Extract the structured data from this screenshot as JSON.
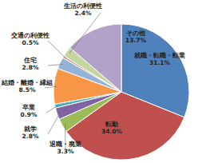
{
  "chart_data": {
    "type": "pie",
    "categories": [
      "就職・転職・転業",
      "転勤",
      "退職・廃業",
      "就学",
      "卒業",
      "結婚・離婚・縁組",
      "住宅",
      "交通の利便性",
      "生活の利便性",
      "その他"
    ],
    "values": [
      31.1,
      34.0,
      3.3,
      2.8,
      0.9,
      8.5,
      2.8,
      0.5,
      2.4,
      13.7
    ],
    "value_labels": [
      "31.1%",
      "34.0%",
      "3.3%",
      "2.8%",
      "0.9%",
      "8.5%",
      "2.8%",
      "0.5%",
      "2.4%",
      "13.7%"
    ],
    "colors": [
      "#4f81bd",
      "#c0504d",
      "#9bbb59",
      "#8064a2",
      "#4bacc6",
      "#f79646",
      "#95b3d7",
      "#d99694",
      "#c3d69b",
      "#b3a2c7"
    ],
    "data_labels": true
  }
}
